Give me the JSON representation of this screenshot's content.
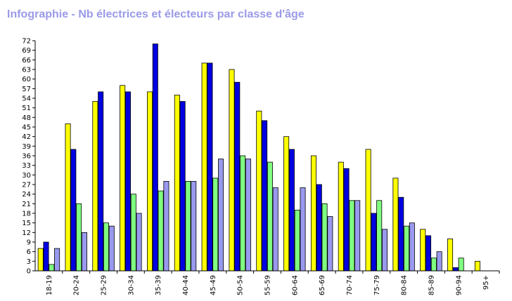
{
  "title": "Infographie - Nb électrices et électeurs par classe d'âge",
  "chart_data": {
    "type": "bar",
    "title": "Infographie - Nb électrices et électeurs par classe d'âge",
    "xlabel": "",
    "ylabel": "",
    "ylim": [
      0,
      72
    ],
    "yticks": [
      0,
      3,
      6,
      9,
      12,
      15,
      18,
      21,
      24,
      27,
      30,
      33,
      36,
      39,
      42,
      45,
      48,
      51,
      54,
      57,
      60,
      63,
      66,
      69,
      72
    ],
    "grid": false,
    "categories": [
      "18-19",
      "20-24",
      "25-29",
      "30-34",
      "35-39",
      "40-44",
      "45-49",
      "50-54",
      "55-59",
      "60-64",
      "65-69",
      "70-74",
      "75-79",
      "80-84",
      "85-89",
      "90-94",
      "95+"
    ],
    "series": [
      {
        "color": "#ffff00",
        "values": [
          7,
          46,
          53,
          58,
          56,
          55,
          65,
          63,
          50,
          42,
          36,
          34,
          38,
          29,
          13,
          10,
          3
        ]
      },
      {
        "color": "#0000e0",
        "values": [
          9,
          38,
          56,
          56,
          71,
          53,
          65,
          59,
          47,
          38,
          27,
          32,
          18,
          23,
          11,
          1,
          0
        ]
      },
      {
        "color": "#80ff80",
        "values": [
          2,
          21,
          15,
          24,
          25,
          28,
          29,
          36,
          34,
          19,
          21,
          22,
          22,
          14,
          4,
          4,
          0
        ]
      },
      {
        "color": "#9999ee",
        "values": [
          7,
          12,
          14,
          18,
          28,
          28,
          35,
          35,
          26,
          26,
          17,
          22,
          13,
          15,
          6,
          0,
          0
        ]
      }
    ]
  }
}
